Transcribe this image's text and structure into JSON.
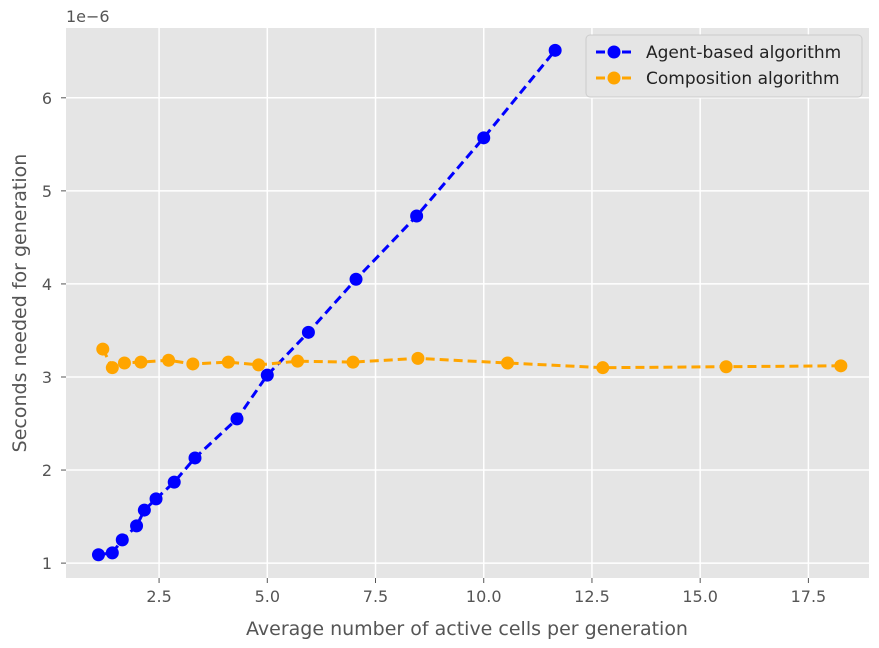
{
  "chart_data": {
    "type": "line",
    "xlabel": "Average number of active cells per generation",
    "ylabel": "Seconds needed for generation",
    "y_offset_label": "1e−6",
    "xlim": [
      0.35,
      18.9
    ],
    "ylim": [
      0.84,
      6.75
    ],
    "x_ticks": [
      2.5,
      5.0,
      7.5,
      10.0,
      12.5,
      15.0,
      17.5
    ],
    "x_tick_labels": [
      "2.5",
      "5.0",
      "7.5",
      "10.0",
      "12.5",
      "15.0",
      "17.5"
    ],
    "y_ticks": [
      1,
      2,
      3,
      4,
      5,
      6
    ],
    "y_tick_labels": [
      "1",
      "2",
      "3",
      "4",
      "5",
      "6"
    ],
    "grid": true,
    "legend_position": "top-right",
    "series": [
      {
        "name": "Agent-based algorithm",
        "color": "#0000ff",
        "x": [
          1.1,
          1.42,
          1.65,
          1.98,
          2.16,
          2.43,
          2.85,
          3.33,
          4.3,
          5.0,
          5.95,
          7.05,
          8.45,
          10.0,
          11.65
        ],
        "y": [
          1.09,
          1.11,
          1.25,
          1.4,
          1.57,
          1.69,
          1.87,
          2.13,
          2.55,
          3.02,
          3.48,
          4.05,
          4.73,
          5.57,
          6.51
        ]
      },
      {
        "name": "Composition algorithm",
        "color": "#ffa500",
        "x": [
          1.2,
          1.42,
          1.7,
          2.08,
          2.72,
          3.28,
          4.1,
          4.8,
          5.7,
          6.98,
          8.48,
          10.55,
          12.75,
          15.6,
          18.25
        ],
        "y": [
          3.3,
          3.1,
          3.15,
          3.16,
          3.18,
          3.14,
          3.16,
          3.13,
          3.17,
          3.16,
          3.2,
          3.15,
          3.1,
          3.11,
          3.12
        ]
      }
    ]
  }
}
